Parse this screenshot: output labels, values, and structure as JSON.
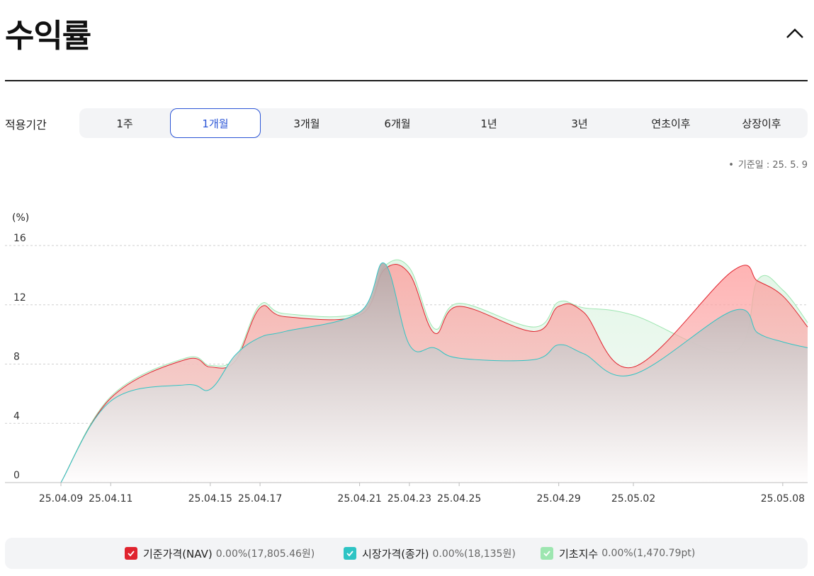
{
  "header": {
    "title": "수익률",
    "collapse_icon": "chevron-up-icon"
  },
  "period": {
    "label": "적용기간",
    "tabs": [
      "1주",
      "1개월",
      "3개월",
      "6개월",
      "1년",
      "3년",
      "연초이후",
      "상장이후"
    ],
    "active_index": 1
  },
  "base_date": "기준일 : 25. 5. 9",
  "colors": {
    "nav": "#e0232e",
    "market": "#2ec4c4",
    "index": "#9de6b0",
    "accent": "#2b55d6"
  },
  "chart_data": {
    "type": "area",
    "unit_label": "(%)",
    "y_ticks": [
      "0",
      "4",
      "8",
      "12",
      "16"
    ],
    "ylim": [
      0,
      16
    ],
    "grid": true,
    "x_tick_labels": [
      "25.04.09",
      "25.04.11",
      "25.04.15",
      "25.04.17",
      "25.04.21",
      "25.04.23",
      "25.04.25",
      "25.04.29",
      "25.05.02",
      "25.05.08"
    ],
    "x": [
      "25.04.09",
      "25.04.11",
      "25.04.14",
      "25.04.15",
      "25.04.16",
      "25.04.17",
      "25.04.18",
      "25.04.21",
      "25.04.22",
      "25.04.23",
      "25.04.24",
      "25.04.25",
      "25.04.28",
      "25.04.29",
      "25.04.30",
      "25.05.02",
      "25.05.06",
      "25.05.07",
      "25.05.08",
      "25.05.09"
    ],
    "series": [
      {
        "name": "기초지수",
        "values": [
          0,
          5.8,
          8.4,
          7.9,
          8.4,
          12.0,
          11.4,
          11.5,
          14.6,
          14.5,
          10.4,
          12.1,
          10.5,
          12.2,
          11.8,
          11.3,
          8.8,
          13.7,
          13.0,
          10.8
        ]
      },
      {
        "name": "기준가격(NAV)",
        "values": [
          0,
          5.7,
          8.3,
          7.8,
          8.2,
          11.8,
          11.2,
          11.3,
          14.4,
          14.1,
          10.1,
          11.9,
          10.2,
          11.9,
          11.5,
          7.8,
          14.3,
          13.6,
          12.6,
          10.5
        ]
      },
      {
        "name": "시장가격(종가)",
        "values": [
          0,
          5.5,
          6.6,
          6.3,
          8.6,
          9.8,
          10.2,
          11.5,
          14.8,
          9.3,
          9.1,
          8.4,
          8.3,
          9.3,
          8.7,
          7.3,
          11.6,
          10.1,
          9.5,
          9.1
        ]
      }
    ]
  },
  "legend": [
    {
      "name": "기준가격(NAV)",
      "value": "0.00%(17,805.46원)",
      "color": "#e0232e"
    },
    {
      "name": "시장가격(종가)",
      "value": "0.00%(18,135원)",
      "color": "#2ec4c4"
    },
    {
      "name": "기초지수",
      "value": "0.00%(1,470.79pt)",
      "color": "#9de6b0"
    }
  ]
}
